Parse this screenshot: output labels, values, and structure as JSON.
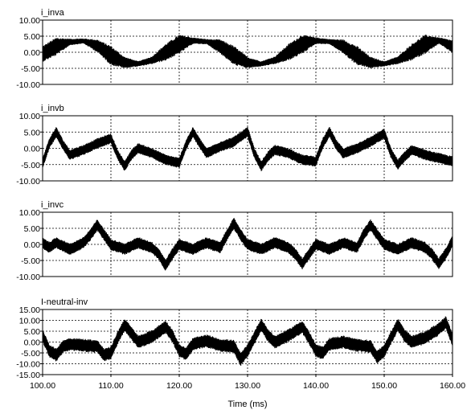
{
  "chart_data": [
    {
      "type": "line",
      "title": "i_inva",
      "ylim": [
        -10,
        10
      ],
      "yticks": [
        10,
        5,
        0,
        -5,
        -10
      ],
      "yticklabels": [
        "10.00",
        "5.00",
        "0.00",
        "-5.00",
        "-10.00"
      ],
      "xlim": [
        100,
        160
      ],
      "grid": true,
      "series": [
        {
          "x": [
            100,
            102,
            104,
            106,
            108,
            110,
            112,
            114,
            116,
            118,
            120,
            122,
            124,
            126,
            128,
            130,
            132,
            134,
            136,
            138,
            140,
            142,
            144,
            146,
            148,
            150,
            152,
            154,
            156,
            158,
            160
          ],
          "y": [
            -0.5,
            1.8,
            3.2,
            3.5,
            2.0,
            -1.0,
            -3.2,
            -3.6,
            -2.5,
            0.0,
            2.5,
            3.6,
            3.3,
            1.8,
            -1.0,
            -3.2,
            -3.6,
            -2.5,
            0.0,
            2.5,
            3.6,
            3.3,
            1.8,
            -1.0,
            -3.2,
            -3.6,
            -2.5,
            0.0,
            2.5,
            3.6,
            1.8
          ],
          "band_halfwidth": [
            2.5,
            2.8,
            1.0,
            0.8,
            2.0,
            3.0,
            1.8,
            0.8,
            1.2,
            2.6,
            3.0,
            1.0,
            0.8,
            2.2,
            3.0,
            1.8,
            0.8,
            1.2,
            2.6,
            3.0,
            1.0,
            0.8,
            2.2,
            3.0,
            1.8,
            0.8,
            1.2,
            2.6,
            3.0,
            1.0,
            2.0
          ]
        }
      ]
    },
    {
      "type": "line",
      "title": "i_invb",
      "ylim": [
        -10,
        10
      ],
      "yticks": [
        10,
        5,
        0,
        -5,
        -10
      ],
      "yticklabels": [
        "10.00",
        "5.00",
        "0.00",
        "-5.00",
        "-10.00"
      ],
      "xlim": [
        100,
        160
      ],
      "grid": true,
      "series": [
        {
          "x": [
            100,
            101,
            102,
            103,
            104,
            106,
            108,
            110,
            111,
            112,
            113,
            114,
            116,
            118,
            120,
            121,
            122,
            123,
            124,
            126,
            128,
            130,
            131,
            132,
            133,
            134,
            136,
            138,
            140,
            141,
            142,
            143,
            144,
            146,
            148,
            150,
            151,
            152,
            153,
            154,
            156,
            158,
            160
          ],
          "y": [
            -4.5,
            1.5,
            5.0,
            1.0,
            -2.0,
            -0.5,
            1.5,
            3.0,
            -2.0,
            -5.5,
            -2.0,
            0.0,
            -1.5,
            -3.5,
            -4.5,
            1.0,
            5.0,
            1.5,
            -1.5,
            0.5,
            2.0,
            5.0,
            -1.5,
            -5.5,
            -2.5,
            -0.5,
            -1.5,
            -3.5,
            -4.0,
            1.5,
            5.0,
            1.0,
            -1.5,
            0.0,
            2.0,
            4.5,
            -1.5,
            -5.0,
            -2.5,
            -0.5,
            -2.0,
            -3.0,
            -4.0
          ],
          "band_halfwidth": 1.6
        }
      ]
    },
    {
      "type": "line",
      "title": "i_invc",
      "ylim": [
        -10,
        10
      ],
      "yticks": [
        10,
        5,
        0,
        -5,
        -10
      ],
      "yticklabels": [
        "10.00",
        "5.00",
        "0.00",
        "-5.00",
        "-10.00"
      ],
      "xlim": [
        100,
        160
      ],
      "grid": true,
      "series": [
        {
          "x": [
            100,
            101,
            102,
            104,
            106,
            107,
            108,
            109,
            110,
            112,
            114,
            116,
            117,
            118,
            119,
            120,
            122,
            124,
            126,
            127,
            128,
            129,
            130,
            132,
            134,
            136,
            137,
            138,
            139,
            140,
            142,
            144,
            146,
            147,
            148,
            149,
            150,
            152,
            154,
            156,
            157,
            158,
            159,
            160
          ],
          "y": [
            0.5,
            -1.0,
            0.5,
            -1.5,
            0.5,
            3.0,
            6.0,
            3.0,
            0.0,
            -1.5,
            0.5,
            -1.0,
            -3.0,
            -6.5,
            -3.0,
            0.0,
            -1.5,
            0.5,
            -1.0,
            3.0,
            6.5,
            3.0,
            0.0,
            -1.5,
            0.5,
            -1.0,
            -3.0,
            -6.0,
            -3.0,
            0.0,
            -1.5,
            0.5,
            -1.0,
            3.0,
            6.0,
            3.0,
            0.0,
            -1.5,
            0.5,
            -1.0,
            -3.0,
            -6.0,
            -3.0,
            1.0
          ],
          "band_halfwidth": 1.8
        }
      ]
    },
    {
      "type": "line",
      "title": "I-neutral-inv",
      "ylim": [
        -15,
        15
      ],
      "yticks": [
        15,
        10,
        5,
        0,
        -5,
        -10,
        -15
      ],
      "yticklabels": [
        "15.00",
        "10.00",
        "5.00",
        "0.00",
        "-5.00",
        "-10.00",
        "-15.00"
      ],
      "xlim": [
        100,
        160
      ],
      "xticks": [
        100,
        110,
        120,
        130,
        140,
        150,
        160
      ],
      "xticklabels": [
        "100.00",
        "110.00",
        "120.00",
        "130.00",
        "140.00",
        "150.00",
        "160.00"
      ],
      "xlabel": "Time  (ms)",
      "grid": true,
      "series": [
        {
          "x": [
            100,
            101,
            102,
            103,
            104,
            106,
            108,
            109,
            110,
            111,
            112,
            113,
            114,
            116,
            118,
            119,
            120,
            121,
            122,
            124,
            126,
            128,
            129,
            130,
            131,
            132,
            133,
            134,
            136,
            138,
            139,
            140,
            141,
            142,
            144,
            146,
            148,
            149,
            150,
            151,
            152,
            153,
            154,
            156,
            158,
            159,
            160
          ],
          "y": [
            3.0,
            -4.0,
            -6.0,
            -2.0,
            -1.0,
            -1.5,
            -2.0,
            -6.0,
            -5.0,
            2.0,
            8.0,
            4.0,
            0.0,
            2.5,
            7.0,
            3.0,
            -4.0,
            -5.5,
            -1.0,
            0.5,
            -1.5,
            -2.0,
            -8.0,
            -4.0,
            2.0,
            8.0,
            3.0,
            0.0,
            3.0,
            7.0,
            2.0,
            -4.0,
            -5.0,
            -1.0,
            0.0,
            -1.5,
            -2.0,
            -7.0,
            -4.0,
            2.0,
            8.0,
            3.0,
            0.0,
            2.0,
            6.0,
            9.0,
            1.0
          ],
          "band_halfwidth": 3.0
        }
      ]
    }
  ]
}
